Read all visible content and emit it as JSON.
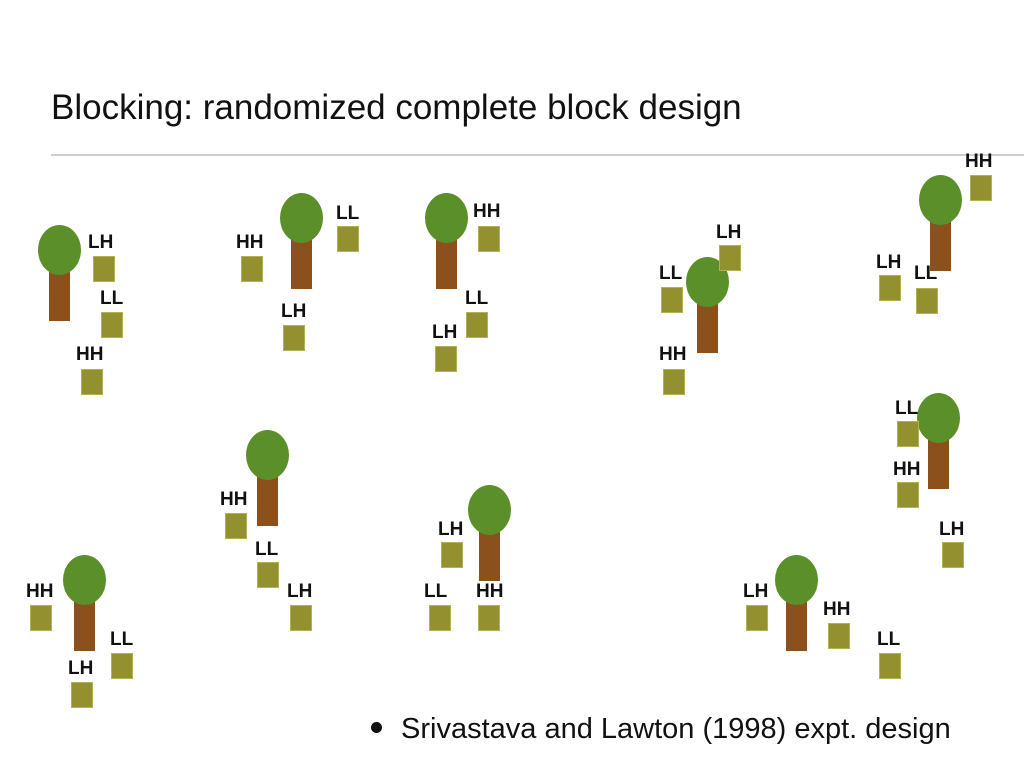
{
  "title": "Blocking: randomized complete block design",
  "treatments": [
    "LH",
    "LL",
    "HH"
  ],
  "blocks": [
    {
      "tree": {},
      "plots": [
        "LH",
        "LL",
        "HH"
      ]
    },
    {
      "tree": {},
      "plots": [
        "HH",
        "LL",
        "LH"
      ]
    },
    {
      "tree": {},
      "plots": [
        "HH",
        "LL",
        "LH"
      ]
    },
    {
      "tree": {},
      "plots": [
        "LH",
        "LL",
        "HH"
      ]
    },
    {
      "tree": {},
      "plots": [
        "HH",
        "LH",
        "LL"
      ]
    },
    {
      "tree": {},
      "plots": [
        "HH",
        "LL",
        "LH"
      ]
    },
    {
      "tree": {},
      "plots": [
        "LH",
        "HH",
        "LL"
      ]
    },
    {
      "tree": {},
      "plots": [
        "LL",
        "HH",
        "LH"
      ]
    },
    {
      "tree": {},
      "plots": [
        "HH",
        "LL",
        "LH"
      ]
    },
    {
      "tree": {},
      "plots": [
        "LH",
        "HH",
        "LL"
      ]
    }
  ],
  "citation": "Srivastava and Lawton (1998) expt. design",
  "colors": {
    "trunk": "#8b501c",
    "crown": "#5a8f29",
    "plot": "#939030"
  }
}
